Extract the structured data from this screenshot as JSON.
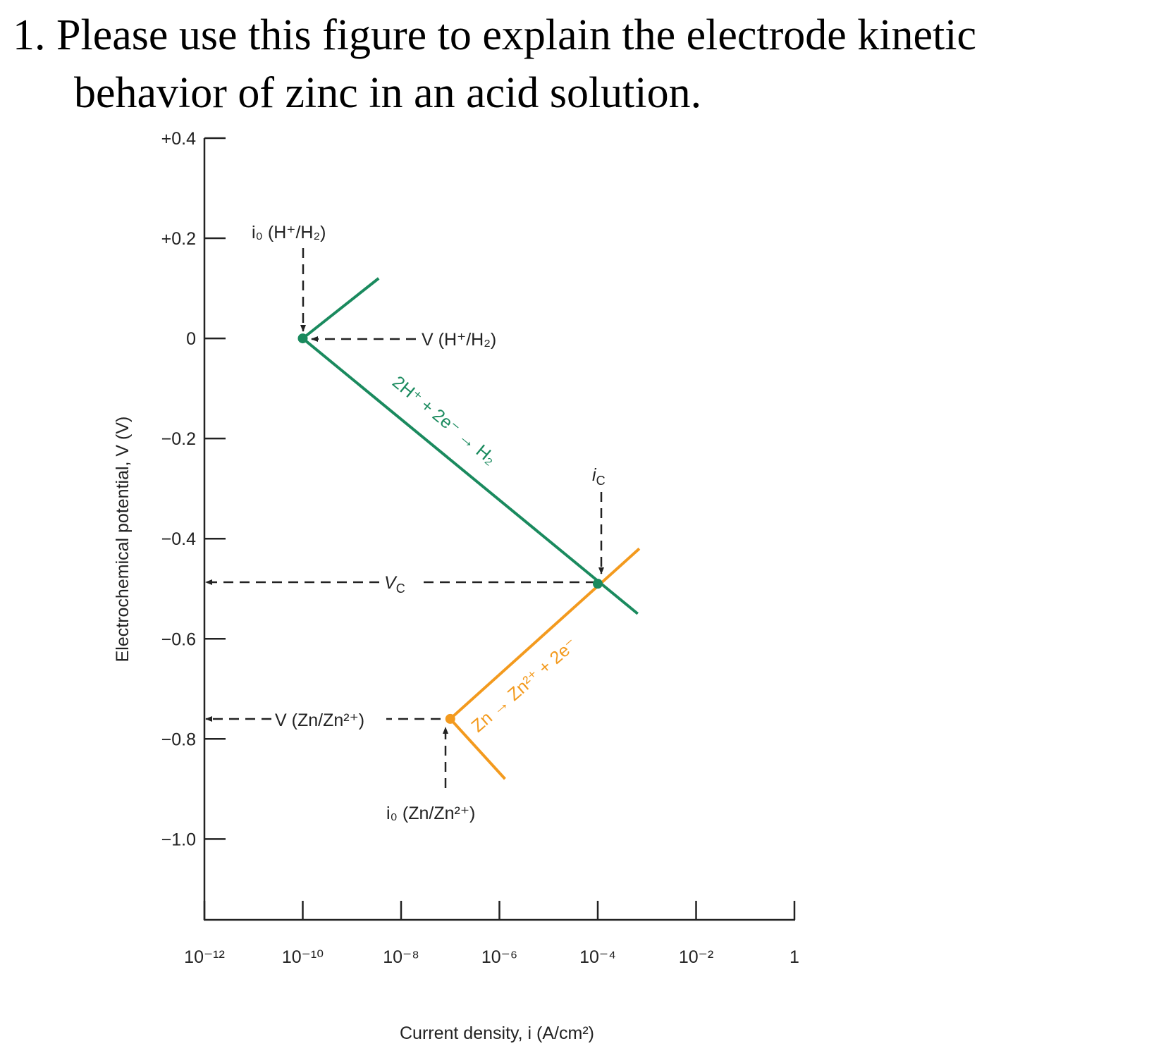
{
  "question": {
    "number": "1.",
    "line1": "Please use this figure to explain the electrode kinetic",
    "line2": "behavior of zinc in an acid solution."
  },
  "chart_data": {
    "type": "line",
    "x_label": "Current density, i (A/cm²)",
    "y_label": "Electrochemical potential, V (V)",
    "xscale": "log",
    "xlim": [
      1e-12,
      1
    ],
    "xticks": [
      {
        "value": 1e-12,
        "label": "10⁻¹²"
      },
      {
        "value": 1e-10,
        "label": "10⁻¹⁰"
      },
      {
        "value": 1e-08,
        "label": "10⁻⁸"
      },
      {
        "value": 1e-06,
        "label": "10⁻⁶"
      },
      {
        "value": 0.0001,
        "label": "10⁻⁴"
      },
      {
        "value": 0.01,
        "label": "10⁻²"
      },
      1
    ],
    "ylim": [
      -1.16,
      0.4
    ],
    "yticks": [
      {
        "value": 0.4,
        "label": "+0.4"
      },
      {
        "value": 0.2,
        "label": "+0.2"
      },
      0,
      {
        "value": -0.2,
        "label": "−0.2"
      },
      {
        "value": -0.4,
        "label": "−0.4"
      },
      {
        "value": -0.6,
        "label": "−0.6"
      },
      {
        "value": -0.8,
        "label": "−0.8"
      },
      {
        "value": -1.0,
        "label": "−1.0"
      }
    ],
    "series": [
      {
        "color": "#1a8a5e",
        "x": [
          3.5e-09,
          1e-10,
          0.00065
        ],
        "values": [
          0.12,
          0,
          -0.55
        ]
      },
      {
        "color": "#f39a1e",
        "x": [
          1.3e-06,
          1e-07,
          0.0007
        ],
        "values": [
          -0.88,
          -0.76,
          -0.42
        ]
      }
    ],
    "markers": [
      {
        "color": "#1a8a5e",
        "x": 1e-10,
        "value": 0
      },
      {
        "color": "#1a8a5e",
        "x": 0.0001,
        "value": -0.49
      },
      {
        "color": "#f39a1e",
        "x": 1e-07,
        "value": -0.76
      }
    ],
    "annotations": {
      "i0_h": "i₀ (H⁺/H₂)",
      "v_h": "V (H⁺/H₂)",
      "h_reaction": "2H⁺ + 2e⁻ → H₂",
      "ic": {
        "text": "i",
        "sub": "C"
      },
      "vc": {
        "text": "V",
        "sub": "C"
      },
      "v_zn": "V (Zn/Zn²⁺)",
      "zn_reaction": "Zn → Zn²⁺ + 2e⁻",
      "i0_zn": "i₀ (Zn/Zn²⁺)"
    }
  }
}
